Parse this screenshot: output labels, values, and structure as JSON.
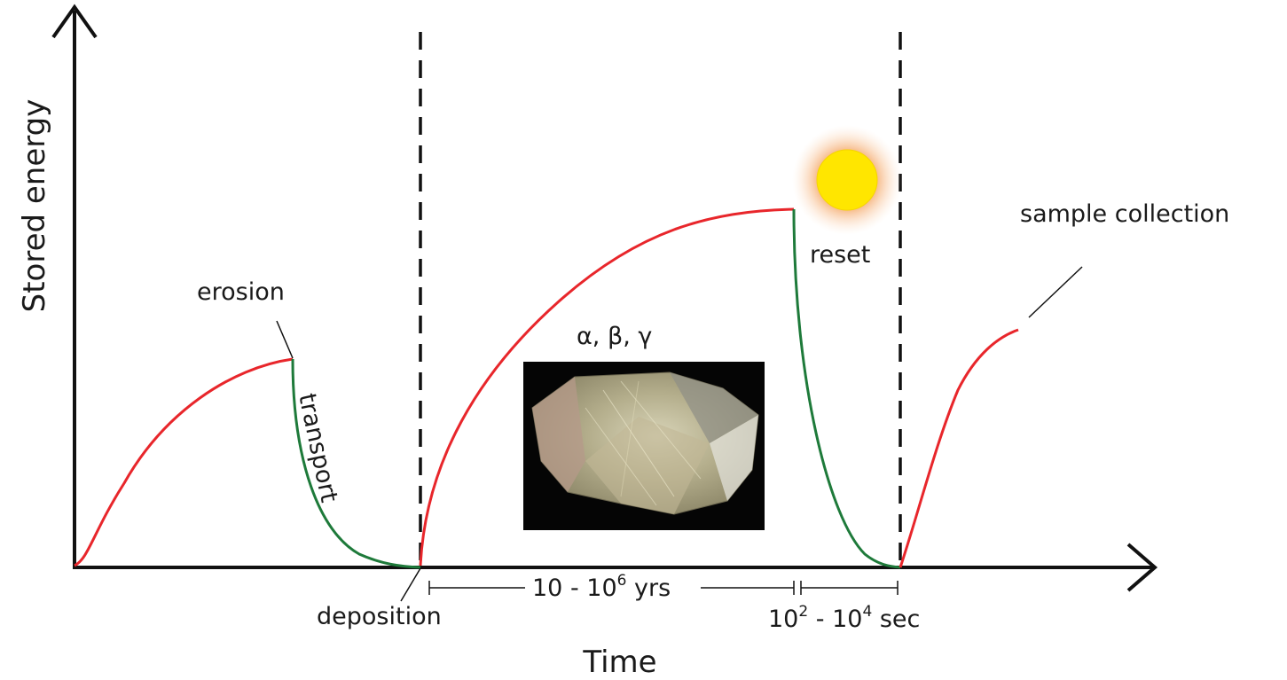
{
  "axes": {
    "y_label": "Stored energy",
    "x_label": "Time"
  },
  "labels": {
    "erosion": "erosion",
    "transport": "transport",
    "deposition": "deposition",
    "reset": "reset",
    "sample_collection": "sample collection",
    "radiation": "α, β, γ"
  },
  "intervals": {
    "burial": {
      "base": "10 - 10",
      "exp": "6",
      "unit": " yrs"
    },
    "exposure": {
      "base": "10",
      "exp": "2",
      "mid": " - 10",
      "exp2": "4",
      "unit": " sec"
    }
  },
  "colors": {
    "accumulation": "#e8262b",
    "bleaching": "#1e7a3a",
    "sun_core": "#ffe600",
    "sun_glow": "#f6a15a",
    "axis": "#111111"
  },
  "icons": {
    "sun": "sun-icon",
    "crystal": "quartz-crystal-photo"
  }
}
